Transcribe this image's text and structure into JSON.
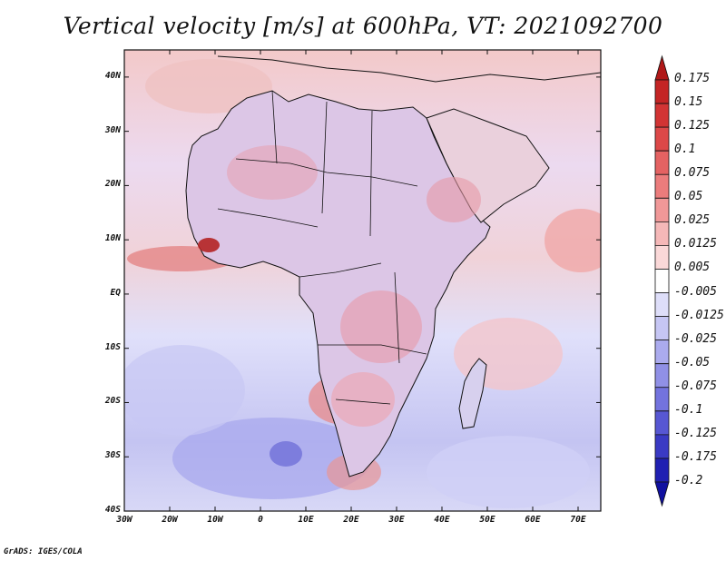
{
  "title": "Vertical velocity [m/s] at 600hPa, VT: 2021092700",
  "credit": "GrADS: IGES/COLA",
  "map": {
    "lon_range": [
      -30,
      75
    ],
    "lat_range": [
      -40,
      45
    ],
    "lat_ticks": [
      "40N",
      "30N",
      "20N",
      "10N",
      "EQ",
      "10S",
      "20S",
      "30S",
      "40S"
    ],
    "lat_tick_values": [
      40,
      30,
      20,
      10,
      0,
      -10,
      -20,
      -30,
      -40
    ],
    "lon_ticks": [
      "30W",
      "20W",
      "10W",
      "0",
      "10E",
      "20E",
      "30E",
      "40E",
      "50E",
      "60E",
      "70E"
    ],
    "lon_tick_values": [
      -30,
      -20,
      -10,
      0,
      10,
      20,
      30,
      40,
      50,
      60,
      70
    ]
  },
  "colorbar": {
    "levels": [
      "0.175",
      "0.15",
      "0.125",
      "0.1",
      "0.075",
      "0.05",
      "0.025",
      "0.0125",
      "0.005",
      "-0.005",
      "-0.0125",
      "-0.025",
      "-0.05",
      "-0.075",
      "-0.1",
      "-0.125",
      "-0.175",
      "-0.2"
    ],
    "colors": [
      "#b01818",
      "#c42525",
      "#d23434",
      "#dc4848",
      "#e46262",
      "#eb7c7c",
      "#f09898",
      "#f5b8b8",
      "#fad8d8",
      "#ffffff",
      "#dedef9",
      "#c6c6f4",
      "#ababee",
      "#9090e6",
      "#7373de",
      "#5757d3",
      "#3a3ac4",
      "#2020b2",
      "#1010a0"
    ]
  }
}
